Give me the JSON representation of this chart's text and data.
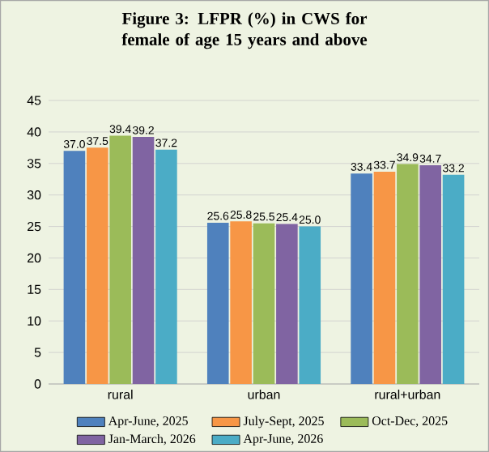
{
  "chart_data": {
    "type": "bar",
    "title": "Figure 3: LFPR  (%) in CWS for female of age 15 years and above",
    "categories": [
      "rural",
      "urban",
      "rural+urban"
    ],
    "series": [
      {
        "name": "Apr-June, 2025",
        "color": "#4f81bd",
        "values": [
          37.0,
          25.6,
          33.4
        ],
        "value_labels": [
          "37.0",
          "25.6",
          "33.4"
        ]
      },
      {
        "name": "July-Sept, 2025",
        "color": "#f79646",
        "values": [
          37.5,
          25.8,
          33.7
        ],
        "value_labels": [
          "37.5",
          "25.8",
          "33.7"
        ]
      },
      {
        "name": "Oct-Dec, 2025",
        "color": "#9bbb59",
        "values": [
          39.4,
          25.5,
          34.9
        ],
        "value_labels": [
          "39.4",
          "25.5",
          "34.9"
        ]
      },
      {
        "name": "Jan-March, 2026",
        "color": "#8064a2",
        "values": [
          39.2,
          25.4,
          34.7
        ],
        "value_labels": [
          "39.2",
          "25.4",
          "34.7"
        ]
      },
      {
        "name": "Apr-June, 2026",
        "color": "#4bacc6",
        "values": [
          37.2,
          25.0,
          33.2
        ],
        "value_labels": [
          "37.2",
          "25.0",
          "33.2"
        ]
      }
    ],
    "ylim": [
      0,
      45
    ],
    "yticks": [
      0,
      5,
      10,
      15,
      20,
      25,
      30,
      35,
      40,
      45
    ],
    "grid": "y",
    "legend": "bottom"
  }
}
